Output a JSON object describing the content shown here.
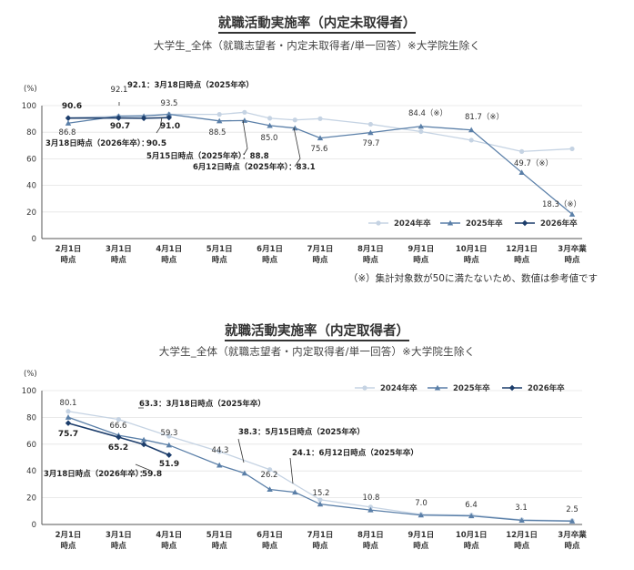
{
  "charts": [
    {
      "title": "就職活動実施率（内定未取得者）",
      "subtitle": "大学生_全体（就職志望者・内定未取得者/単一回答）※大学院生除く",
      "note": "（※）集計対象数が50に満たないため、数値は参考値です"
    },
    {
      "title": "就職活動実施率（内定取得者）",
      "subtitle": "大学生_全体（就職志望者・内定取得者/単一回答）※大学院生除く",
      "note": ""
    }
  ],
  "chart_data": [
    {
      "type": "line",
      "title": "就職活動実施率（内定未取得者）",
      "ylabel": "(%)",
      "ylim": [
        0,
        100
      ],
      "yticks": [
        0,
        20,
        40,
        60,
        80,
        100
      ],
      "categories": [
        "2月1日\n時点",
        "3月1日\n時点",
        "4月1日\n時点",
        "5月1日\n時点",
        "6月1日\n時点",
        "7月1日\n時点",
        "8月1日\n時点",
        "9月1日\n時点",
        "10月1日\n時点",
        "12月1日\n時点",
        "3月卒業\n時点"
      ],
      "legend": [
        "2024年卒",
        "2025年卒",
        "2026年卒"
      ],
      "series": [
        {
          "name": "2024年卒",
          "color": "#c5d3e3",
          "marker": "circle",
          "x": [
            0,
            1,
            2,
            3,
            3.5,
            4,
            4.5,
            5,
            6,
            7,
            8,
            9,
            10
          ],
          "values": [
            90.8,
            92.1,
            93.5,
            93.4,
            95.0,
            90.5,
            89.2,
            90.2,
            86.0,
            80.5,
            74.0,
            65.5,
            67.5
          ]
        },
        {
          "name": "2025年卒",
          "color": "#5a7fa8",
          "marker": "triangle",
          "x": [
            0,
            1,
            1.5,
            2,
            3,
            3.5,
            4,
            4.5,
            5,
            6,
            7,
            8,
            9,
            10
          ],
          "values": [
            86.8,
            92.1,
            92.1,
            93.5,
            88.5,
            88.8,
            85.0,
            83.1,
            75.6,
            79.7,
            84.4,
            81.7,
            49.7,
            18.3
          ]
        },
        {
          "name": "2026年卒",
          "color": "#1c3d6b",
          "marker": "diamond",
          "x": [
            0,
            1,
            1.5,
            2
          ],
          "values": [
            90.6,
            90.7,
            90.5,
            91.0
          ]
        }
      ],
      "labels": [
        {
          "text": "90.6",
          "bold": true
        },
        {
          "text": "86.8"
        },
        {
          "text": "92.1"
        },
        {
          "text": "92.1：3月18日時点（2025年卒）",
          "bold": true
        },
        {
          "text": "93.5"
        },
        {
          "text": "90.7",
          "bold": true
        },
        {
          "text": "91.0",
          "bold": true
        },
        {
          "text": "3月18日時点（2026年卒）：",
          "bold": true
        },
        {
          "text": "90.5",
          "bold": true
        },
        {
          "text": "88.5"
        },
        {
          "text": "85.0"
        },
        {
          "text": "5月15日時点（2025年卒）：88.8",
          "bold": true
        },
        {
          "text": "6月12日時点（2025年卒）：83.1",
          "bold": true
        },
        {
          "text": "75.6"
        },
        {
          "text": "79.7"
        },
        {
          "text": "84.4（※）"
        },
        {
          "text": "81.7（※）"
        },
        {
          "text": "49.7（※）"
        },
        {
          "text": "18.3（※）"
        }
      ]
    },
    {
      "type": "line",
      "title": "就職活動実施率（内定取得者）",
      "ylabel": "(%)",
      "ylim": [
        0,
        100
      ],
      "yticks": [
        0,
        20,
        40,
        60,
        80,
        100
      ],
      "categories": [
        "2月1日\n時点",
        "3月1日\n時点",
        "4月1日\n時点",
        "5月1日\n時点",
        "6月1日\n時点",
        "7月1日\n時点",
        "8月1日\n時点",
        "9月1日\n時点",
        "10月1日\n時点",
        "12月1日\n時点",
        "3月卒業\n時点"
      ],
      "legend": [
        "2024年卒",
        "2025年卒",
        "2026年卒"
      ],
      "series": [
        {
          "name": "2024年卒",
          "color": "#c5d3e3",
          "marker": "circle",
          "x": [
            0,
            1,
            2,
            3,
            4,
            5,
            6,
            7,
            8,
            9,
            10
          ],
          "values": [
            84.5,
            78.5,
            66.0,
            54.5,
            41.0,
            18.5,
            13.0,
            7.5,
            7.0,
            3.5,
            2.8
          ]
        },
        {
          "name": "2025年卒",
          "color": "#5a7fa8",
          "marker": "triangle",
          "x": [
            0,
            1,
            1.5,
            2,
            3,
            3.5,
            4,
            4.5,
            5,
            6,
            7,
            8,
            9,
            10
          ],
          "values": [
            80.1,
            66.6,
            63.3,
            59.3,
            44.3,
            38.3,
            26.2,
            24.1,
            15.2,
            10.8,
            7.0,
            6.4,
            3.1,
            2.5
          ]
        },
        {
          "name": "2026年卒",
          "color": "#1c3d6b",
          "marker": "diamond",
          "x": [
            0,
            1,
            1.5,
            2
          ],
          "values": [
            75.7,
            65.2,
            59.8,
            51.9
          ]
        }
      ],
      "labels": [
        {
          "text": "80.1"
        },
        {
          "text": "75.7",
          "bold": true
        },
        {
          "text": "66.6"
        },
        {
          "text": "65.2",
          "bold": true
        },
        {
          "text": "63.3：3月18日時点（2025年卒）",
          "bold": true
        },
        {
          "text": "59.3"
        },
        {
          "text": "51.9",
          "bold": true
        },
        {
          "text": "3月18日時点（2026年卒）：",
          "bold": true
        },
        {
          "text": "59.8",
          "bold": true
        },
        {
          "text": "44.3"
        },
        {
          "text": "38.3：5月15日時点（2025年卒）",
          "bold": true
        },
        {
          "text": "26.2"
        },
        {
          "text": "24.1：6月12日時点（2025年卒）",
          "bold": true
        },
        {
          "text": "15.2"
        },
        {
          "text": "10.8"
        },
        {
          "text": "7.0"
        },
        {
          "text": "6.4"
        },
        {
          "text": "3.1"
        },
        {
          "text": "2.5"
        }
      ]
    }
  ]
}
